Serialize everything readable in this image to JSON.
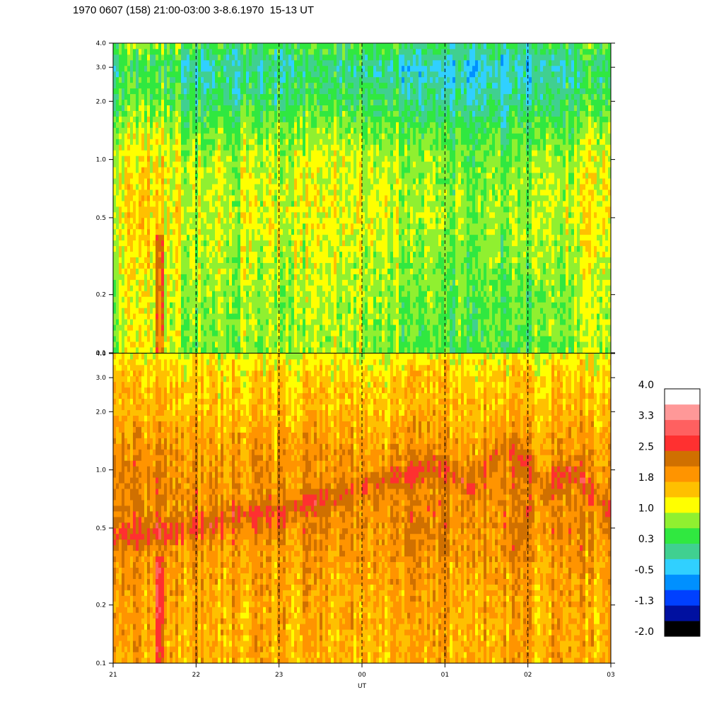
{
  "title": "1970 0607 (158) 21:00-03:00 3-8.6.1970  15-13 UT",
  "chart_data": [
    {
      "type": "heatmap",
      "panel": "top",
      "y_scale": "log",
      "ylim": [
        0.1,
        4.0
      ],
      "y_ticks": [
        "0.1",
        "0.2",
        "0.5",
        "1.0",
        "2.0",
        "3.0",
        "4.0"
      ],
      "y_tick_values": [
        0.1,
        0.2,
        0.5,
        1.0,
        2.0,
        3.0,
        4.0
      ],
      "x_ticks": [
        "21",
        "22",
        "23",
        "00",
        "01",
        "02",
        "03"
      ],
      "dashed_verticals_at": [
        "22",
        "23",
        "00",
        "01",
        "02"
      ],
      "profile_value_vs_freq": [
        [
          0.1,
          0.5
        ],
        [
          0.2,
          0.6
        ],
        [
          0.5,
          0.85
        ],
        [
          1.0,
          0.7
        ],
        [
          2.0,
          0.0
        ],
        [
          3.0,
          -0.3
        ],
        [
          4.0,
          0.2
        ]
      ],
      "x_modulation": [
        [
          21.0,
          0.3
        ],
        [
          21.5,
          0.5
        ],
        [
          22.0,
          0.0
        ],
        [
          23.0,
          0.1
        ],
        [
          24.0,
          0.2
        ],
        [
          25.0,
          -0.3
        ],
        [
          26.0,
          -0.2
        ],
        [
          27.0,
          0.3
        ]
      ]
    },
    {
      "type": "heatmap",
      "panel": "bottom",
      "y_scale": "log",
      "ylim": [
        0.1,
        4.0
      ],
      "y_ticks": [
        "0.1",
        "0.2",
        "0.5",
        "1.0",
        "2.0",
        "3.0",
        "4.0"
      ],
      "y_tick_values": [
        0.1,
        0.2,
        0.5,
        1.0,
        2.0,
        3.0,
        4.0
      ],
      "x_ticks": [
        "21",
        "22",
        "23",
        "00",
        "01",
        "02",
        "03"
      ],
      "x_label": "UT",
      "dashed_verticals_at": [
        "22",
        "23",
        "00",
        "01",
        "02"
      ],
      "profile_value_vs_freq": [
        [
          0.1,
          1.55
        ],
        [
          0.2,
          1.6
        ],
        [
          0.5,
          1.9
        ],
        [
          1.0,
          1.85
        ],
        [
          2.0,
          1.45
        ],
        [
          3.0,
          1.3
        ],
        [
          4.0,
          0.95
        ]
      ],
      "dark_band_center_freq_vs_time": [
        [
          21.0,
          0.45
        ],
        [
          22.0,
          0.5
        ],
        [
          22.7,
          0.6
        ],
        [
          23.0,
          0.6
        ],
        [
          23.5,
          0.7
        ],
        [
          24.0,
          0.8
        ],
        [
          24.5,
          0.95
        ],
        [
          25.0,
          1.05
        ],
        [
          25.3,
          0.8
        ],
        [
          25.7,
          1.3
        ],
        [
          26.0,
          1.1
        ],
        [
          26.2,
          0.75
        ],
        [
          26.5,
          1.0
        ],
        [
          27.0,
          0.6
        ]
      ]
    }
  ],
  "colorbar": {
    "labels": [
      "4.0",
      "3.3",
      "2.5",
      "1.8",
      "1.0",
      "0.3",
      "-0.5",
      "-1.3",
      "-2.0"
    ],
    "colors": [
      "#000000",
      "#0010a0",
      "#0040ff",
      "#0090ff",
      "#30d0ff",
      "#40d090",
      "#30e840",
      "#90f030",
      "#ffff00",
      "#ffc000",
      "#ff9400",
      "#d07000",
      "#ff3030",
      "#ff6060",
      "#ff9898",
      "#ffffff"
    ]
  }
}
